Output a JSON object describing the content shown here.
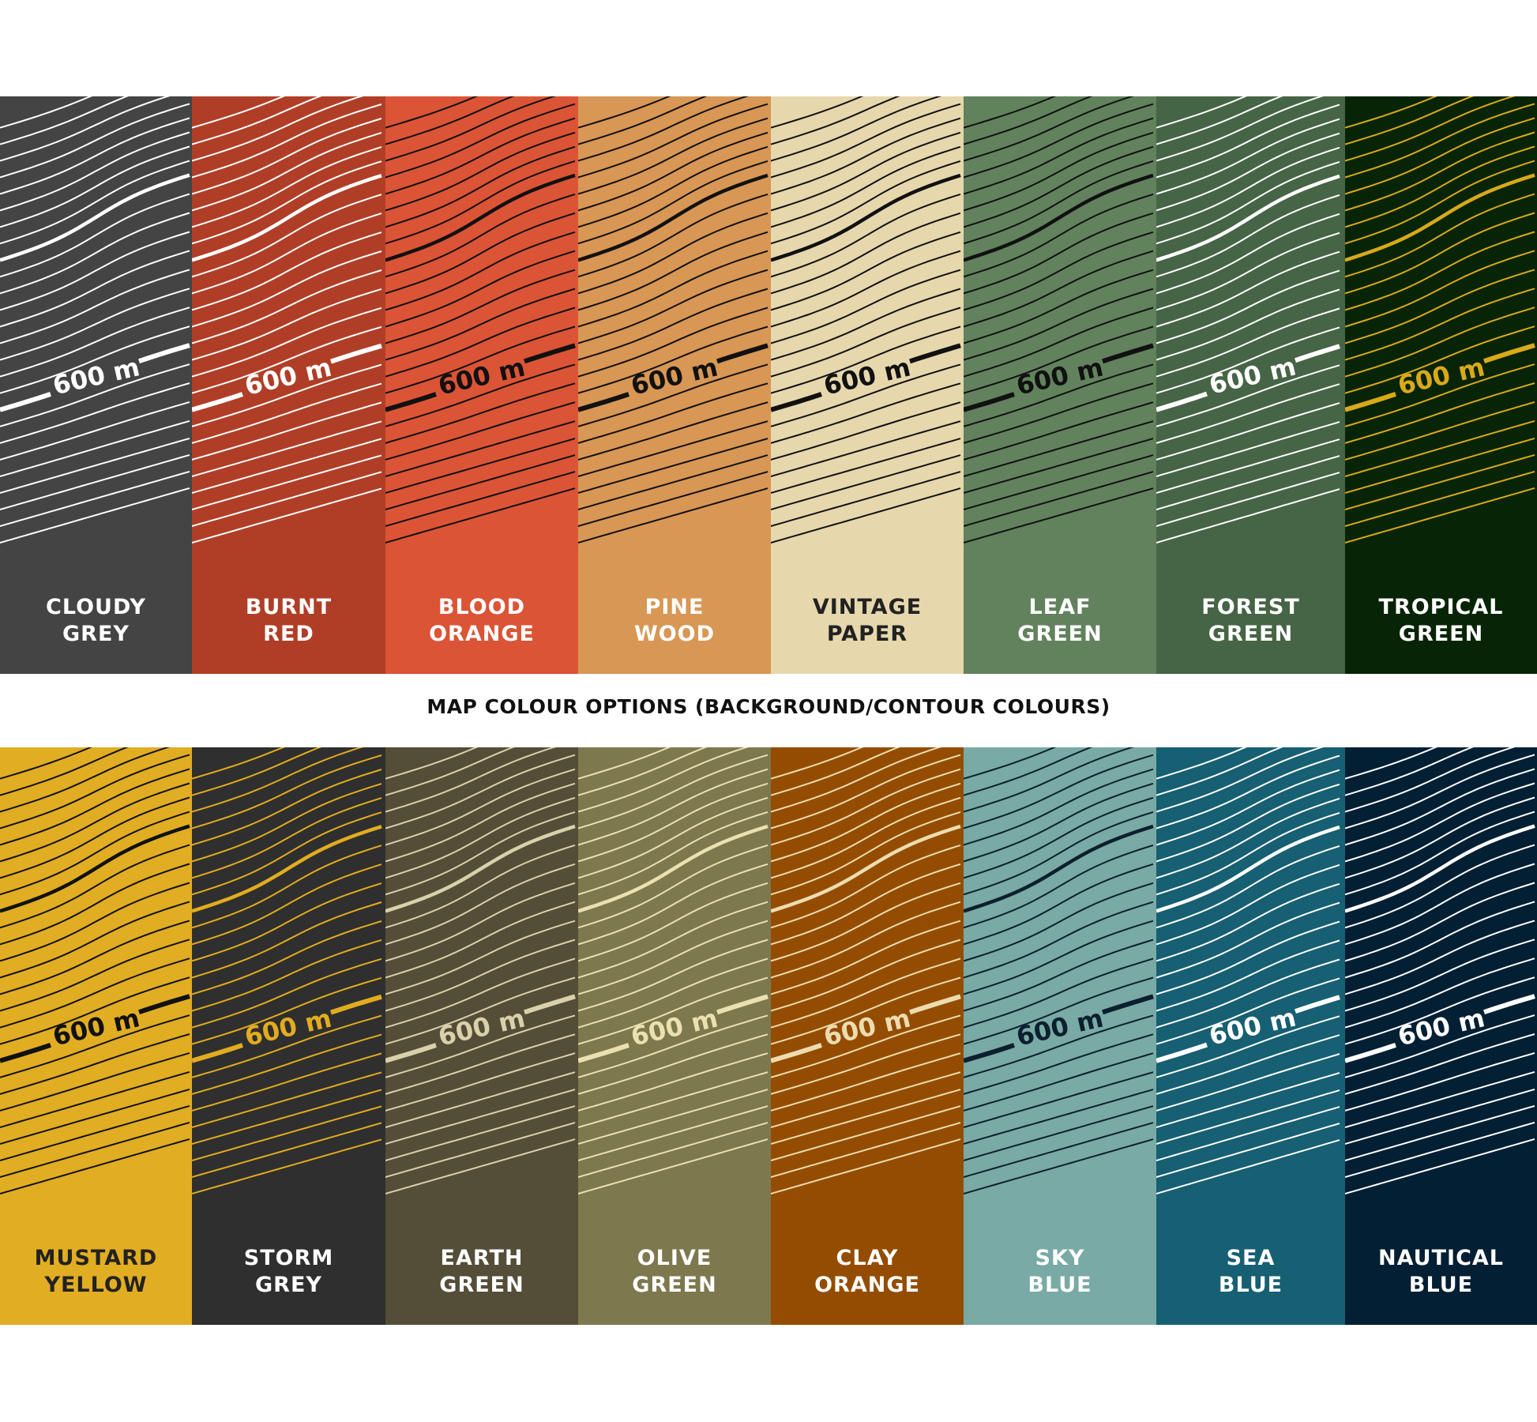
{
  "title": "MAP COLOUR OPTIONS (BACKGROUND/CONTOUR COLOURS)",
  "contour_label": "600 m",
  "rows": [
    [
      {
        "line1": "CLOUDY",
        "line2": "GREY",
        "bg": "#444444",
        "contour": "#ffffff",
        "text": "#ffffff"
      },
      {
        "line1": "BURNT",
        "line2": "RED",
        "bg": "#b03e27",
        "contour": "#ffffff",
        "text": "#ffffff"
      },
      {
        "line1": "BLOOD",
        "line2": "ORANGE",
        "bg": "#db5436",
        "contour": "#111111",
        "text": "#ffffff"
      },
      {
        "line1": "PINE",
        "line2": "WOOD",
        "bg": "#d89755",
        "contour": "#111111",
        "text": "#ffffff"
      },
      {
        "line1": "VINTAGE",
        "line2": "PAPER",
        "bg": "#e6d7ad",
        "contour": "#111111",
        "text": "#222222"
      },
      {
        "line1": "LEAF",
        "line2": "GREEN",
        "bg": "#62825d",
        "contour": "#111111",
        "text": "#ffffff"
      },
      {
        "line1": "FOREST",
        "line2": "GREEN",
        "bg": "#466446",
        "contour": "#ffffff",
        "text": "#ffffff"
      },
      {
        "line1": "TROPICAL",
        "line2": "GREEN",
        "bg": "#082407",
        "contour": "#d9a919",
        "text": "#ffffff"
      }
    ],
    [
      {
        "line1": "MUSTARD",
        "line2": "YELLOW",
        "bg": "#e1ad22",
        "contour": "#111111",
        "text": "#222222"
      },
      {
        "line1": "STORM",
        "line2": "GREY",
        "bg": "#2f2f2f",
        "contour": "#e2ac1f",
        "text": "#ffffff"
      },
      {
        "line1": "EARTH",
        "line2": "GREEN",
        "bg": "#544d38",
        "contour": "#d9d1aa",
        "text": "#ffffff"
      },
      {
        "line1": "OLIVE",
        "line2": "GREEN",
        "bg": "#7e784e",
        "contour": "#ebe0b0",
        "text": "#ffffff"
      },
      {
        "line1": "CLAY",
        "line2": "ORANGE",
        "bg": "#944d00",
        "contour": "#ecdcb0",
        "text": "#ffffff"
      },
      {
        "line1": "SKY",
        "line2": "BLUE",
        "bg": "#79aaa5",
        "contour": "#0d1f2e",
        "text": "#ffffff"
      },
      {
        "line1": "SEA",
        "line2": "BLUE",
        "bg": "#175f72",
        "contour": "#ffffff",
        "text": "#ffffff"
      },
      {
        "line1": "NAUTICAL",
        "line2": "BLUE",
        "bg": "#031f34",
        "contour": "#ffffff",
        "text": "#ffffff"
      }
    ]
  ]
}
